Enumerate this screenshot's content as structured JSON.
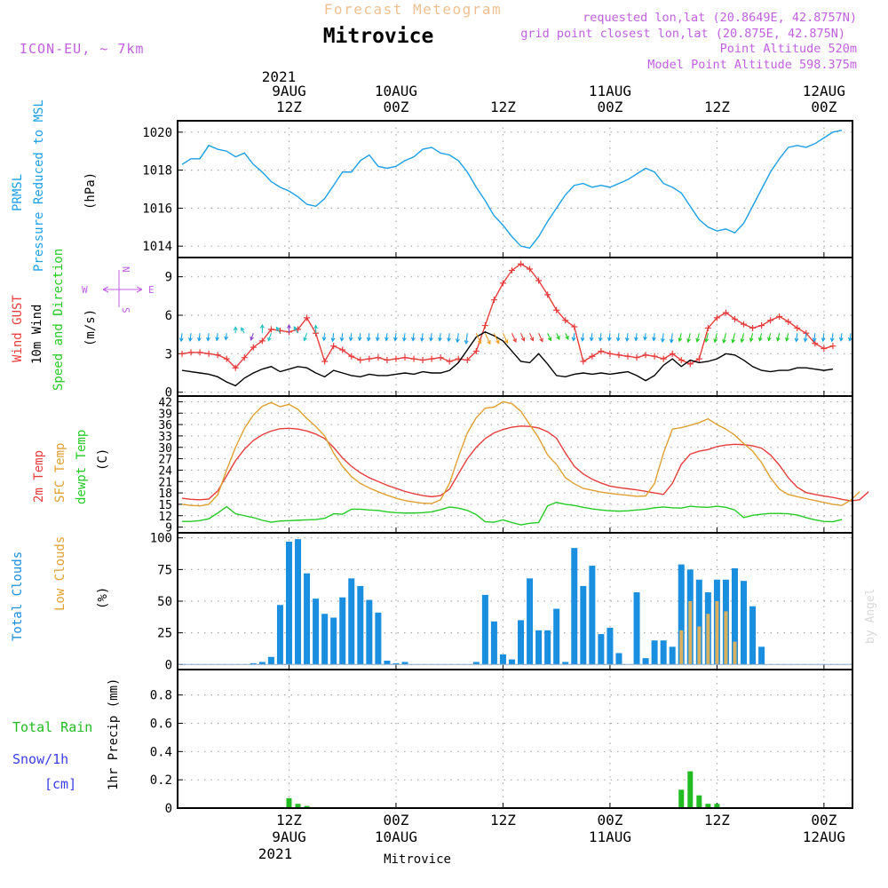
{
  "header": {
    "subtitle": "Forecast Meteogram",
    "title": "Mitrovice",
    "model": "ICON-EU, ~ 7km",
    "requested": "requested lon,lat (20.8649E, 42.8757N)",
    "grid": "grid point closest lon,lat (20.875E, 42.875N)",
    "point_alt": "Point Altitude 520m",
    "model_alt": "Model Point Altitude 598.375m"
  },
  "top_axis": {
    "year": "2021",
    "ticks": [
      {
        "i": 12,
        "l1": "9AUG",
        "l2": "12Z"
      },
      {
        "i": 24,
        "l1": "10AUG",
        "l2": "00Z"
      },
      {
        "i": 36,
        "l1": "",
        "l2": "12Z"
      },
      {
        "i": 48,
        "l1": "11AUG",
        "l2": "00Z"
      },
      {
        "i": 60,
        "l1": "",
        "l2": "12Z"
      },
      {
        "i": 72,
        "l1": "12AUG",
        "l2": "00Z"
      }
    ]
  },
  "bottom_axis": {
    "year": "2021",
    "station": "Mitrovice",
    "ticks": [
      {
        "i": 12,
        "l1": "12Z",
        "l2": "9AUG"
      },
      {
        "i": 24,
        "l1": "00Z",
        "l2": "10AUG"
      },
      {
        "i": 36,
        "l1": "12Z",
        "l2": ""
      },
      {
        "i": 48,
        "l1": "00Z",
        "l2": "11AUG"
      },
      {
        "i": 60,
        "l1": "12Z",
        "l2": ""
      },
      {
        "i": 72,
        "l1": "00Z",
        "l2": "12AUG"
      }
    ]
  },
  "labels": {
    "prmsl": "PRMSL",
    "pressure": "Pressure Reduced to MSL",
    "hpa": "(hPa)",
    "wind_gust": "Wind GUST",
    "wind10": "10m Wind",
    "speed_dir": "Speed and Direction",
    "ms": "(m/s)",
    "t2m": "2m Temp",
    "sfc": "SFC Temp",
    "dewpt": "dewpt Temp",
    "c": "(C)",
    "total_clouds": "Total Clouds",
    "low_clouds": "Low Clouds",
    "pct": "(%)",
    "total_rain": "Total Rain",
    "snow": "Snow/1h",
    "cm": "[cm]",
    "precip": "1hr Precip (mm)",
    "compass_n": "N",
    "compass_s": "S",
    "compass_w": "W",
    "compass_e": "E",
    "watermark": "by Angel"
  },
  "colors": {
    "pressure": "#1aa0e8",
    "gust": "#e83c3c",
    "wind": "#000000",
    "t2m": "#e83c3c",
    "sfc": "#e0a030",
    "dew": "#22cc22",
    "total_clouds": "#1a8fe0",
    "low_clouds": "#d8b060",
    "rain": "#22bb22",
    "magenta": "#c060e0",
    "title_orange": "#f0c090"
  },
  "chart_data": [
    {
      "type": "line",
      "title": "PRMSL Pressure Reduced to MSL",
      "ylabel": "(hPa)",
      "ylim": [
        1013.4,
        1020.6
      ],
      "yticks": [
        1014,
        1016,
        1018,
        1020
      ],
      "x_hours_from_start": "0..75 (hourly, 0 = 9AUG 00Z)",
      "series": [
        {
          "name": "PRMSL",
          "values": [
            1018.3,
            1018.6,
            1018.6,
            1019.3,
            1019.1,
            1019.0,
            1018.7,
            1018.9,
            1018.3,
            1017.9,
            1017.4,
            1017.1,
            1016.9,
            1016.6,
            1016.2,
            1016.1,
            1016.5,
            1017.2,
            1017.9,
            1017.9,
            1018.5,
            1018.8,
            1018.2,
            1018.1,
            1018.2,
            1018.5,
            1018.7,
            1019.1,
            1019.2,
            1018.9,
            1018.8,
            1018.5,
            1017.9,
            1017.1,
            1016.4,
            1015.6,
            1015.1,
            1014.5,
            1014.0,
            1013.9,
            1014.5,
            1015.3,
            1016.0,
            1016.7,
            1017.2,
            1017.3,
            1017.1,
            1017.2,
            1017.1,
            1017.3,
            1017.5,
            1017.8,
            1018.1,
            1017.9,
            1017.3,
            1017.1,
            1016.8,
            1016.1,
            1015.4,
            1015.0,
            1014.8,
            1014.9,
            1014.7,
            1015.2,
            1016.1,
            1017.0,
            1017.9,
            1018.6,
            1019.2,
            1019.3,
            1019.2,
            1019.4,
            1019.7,
            1020.0,
            1020.1
          ]
        }
      ]
    },
    {
      "type": "line",
      "title": "Wind GUST / 10m Wind Speed and Direction",
      "ylabel": "(m/s)",
      "ylim": [
        -0.3,
        10.5
      ],
      "yticks": [
        0,
        3,
        6,
        9
      ],
      "series": [
        {
          "name": "Wind GUST",
          "values": [
            3.0,
            3.1,
            3.1,
            3.0,
            2.9,
            2.6,
            1.9,
            2.7,
            3.5,
            4.0,
            4.9,
            4.8,
            4.7,
            4.9,
            5.8,
            4.6,
            2.4,
            3.6,
            3.3,
            2.8,
            2.5,
            2.6,
            2.7,
            2.5,
            2.6,
            2.7,
            2.6,
            2.5,
            2.6,
            2.7,
            2.4,
            2.6,
            2.5,
            3.2,
            5.2,
            7.2,
            8.5,
            9.5,
            10.0,
            9.6,
            8.7,
            7.6,
            6.4,
            5.6,
            5.1,
            2.4,
            2.8,
            3.2,
            3.0,
            2.9,
            2.8,
            2.7,
            2.9,
            2.8,
            2.6,
            3.0,
            2.5,
            2.2,
            2.6,
            5.0,
            5.8,
            6.2,
            5.7,
            5.3,
            5.0,
            5.2,
            5.6,
            5.9,
            5.5,
            5.0,
            4.6,
            3.8,
            3.4,
            3.6
          ]
        },
        {
          "name": "10m Wind",
          "values": [
            1.7,
            1.6,
            1.5,
            1.4,
            1.2,
            0.8,
            0.5,
            1.1,
            1.5,
            1.8,
            2.0,
            1.6,
            1.8,
            2.0,
            1.9,
            1.5,
            1.2,
            1.7,
            1.5,
            1.3,
            1.2,
            1.4,
            1.3,
            1.3,
            1.4,
            1.5,
            1.4,
            1.6,
            1.5,
            1.5,
            1.7,
            2.3,
            3.3,
            4.3,
            4.7,
            4.4,
            4.0,
            3.2,
            2.4,
            2.3,
            3.0,
            2.2,
            1.3,
            1.2,
            1.4,
            1.5,
            1.4,
            1.5,
            1.4,
            1.5,
            1.6,
            1.3,
            0.9,
            1.3,
            2.1,
            2.6,
            2.0,
            2.5,
            2.3,
            2.4,
            2.6,
            3.0,
            2.9,
            2.5,
            2.0,
            1.7,
            1.6,
            1.7,
            1.7,
            1.9,
            1.9,
            1.8,
            1.7,
            1.8
          ]
        }
      ],
      "direction_arrows": "mostly northerly (pointing down) with north-easterly/southerly variations"
    },
    {
      "type": "line",
      "title": "2m Temp / SFC Temp / dewpt Temp",
      "ylabel": "(C)",
      "ylim": [
        7.5,
        43.5
      ],
      "yticks": [
        9,
        12,
        15,
        18,
        21,
        24,
        27,
        30,
        33,
        36,
        39,
        42
      ],
      "series": [
        {
          "name": "2m Temp",
          "values": [
            16.6,
            16.3,
            16.2,
            16.4,
            18.5,
            22.5,
            26.5,
            29.5,
            31.8,
            33.3,
            34.3,
            34.9,
            35.0,
            34.8,
            34.3,
            33.5,
            32.3,
            30.0,
            27.2,
            25.0,
            23.3,
            22.0,
            21.0,
            20.0,
            19.2,
            18.4,
            17.8,
            17.3,
            17.0,
            17.3,
            19.0,
            23.0,
            27.0,
            30.0,
            32.3,
            33.8,
            34.7,
            35.3,
            35.6,
            35.5,
            35.1,
            34.1,
            32.4,
            28.5,
            25.0,
            23.0,
            21.6,
            20.6,
            19.8,
            19.4,
            19.1,
            18.8,
            18.4,
            18.0,
            17.6,
            20.5,
            25.5,
            28.2,
            29.0,
            29.4,
            30.2,
            30.6,
            30.8,
            30.7,
            30.4,
            29.8,
            28.0,
            25.3,
            22.0,
            19.5,
            18.1,
            17.6,
            17.2,
            16.8,
            16.3,
            15.9,
            16.2,
            18.3
          ]
        },
        {
          "name": "SFC Temp",
          "values": [
            15.0,
            14.7,
            14.6,
            15.0,
            17.5,
            24.0,
            30.0,
            35.0,
            38.5,
            40.8,
            41.8,
            40.7,
            41.3,
            40.0,
            37.6,
            35.5,
            33.0,
            28.5,
            25.0,
            22.3,
            20.5,
            19.3,
            18.3,
            17.4,
            16.6,
            16.0,
            15.6,
            15.3,
            15.2,
            16.2,
            20.5,
            27.5,
            33.8,
            37.8,
            40.3,
            40.6,
            42.0,
            41.5,
            39.5,
            36.0,
            32.5,
            28.0,
            25.5,
            22.0,
            20.4,
            19.2,
            18.7,
            18.2,
            17.9,
            17.6,
            17.4,
            17.1,
            17.2,
            20.5,
            28.5,
            34.8,
            35.2,
            35.8,
            36.5,
            37.5,
            36.0,
            34.8,
            33.2,
            31.0,
            29.0,
            26.0,
            22.0,
            19.0,
            17.6,
            17.0,
            16.5,
            16.0,
            15.5,
            15.0,
            14.7,
            16.1,
            18.3
          ]
        },
        {
          "name": "dewpt Temp",
          "values": [
            10.5,
            10.5,
            10.7,
            11.2,
            12.7,
            14.4,
            12.5,
            12.0,
            11.5,
            10.8,
            10.3,
            10.6,
            10.7,
            10.8,
            10.9,
            11.0,
            11.3,
            12.5,
            12.4,
            13.7,
            13.7,
            13.5,
            13.4,
            13.0,
            12.8,
            12.7,
            12.7,
            12.8,
            13.0,
            13.6,
            14.3,
            14.0,
            13.4,
            12.3,
            10.4,
            10.3,
            10.9,
            10.2,
            9.6,
            10.0,
            10.2,
            14.6,
            15.5,
            15.0,
            14.7,
            14.2,
            13.8,
            13.5,
            13.3,
            13.2,
            13.3,
            13.5,
            13.7,
            14.1,
            14.3,
            14.1,
            14.0,
            14.5,
            14.3,
            14.2,
            14.5,
            14.2,
            13.5,
            11.5,
            12.1,
            12.4,
            12.6,
            12.6,
            12.5,
            12.2,
            11.5,
            10.9,
            10.5,
            10.4,
            11.0
          ]
        }
      ]
    },
    {
      "type": "bar",
      "title": "Total Clouds / Low Clouds",
      "ylabel": "(%)",
      "ylim": [
        -4,
        104
      ],
      "yticks": [
        0,
        25,
        50,
        75,
        100
      ],
      "series": [
        {
          "name": "Total Clouds",
          "values": [
            0,
            0,
            0,
            0,
            0,
            0,
            0,
            0,
            1,
            2,
            6,
            47,
            97,
            99,
            72,
            52,
            40,
            37,
            53,
            68,
            62,
            51,
            41,
            3,
            1,
            2,
            0,
            0,
            0,
            0,
            0,
            0,
            0,
            2,
            55,
            34,
            8,
            4,
            35,
            68,
            27,
            27,
            44,
            2,
            92,
            62,
            78,
            24,
            29,
            9,
            0,
            57,
            5,
            19,
            19,
            14,
            79,
            75,
            67,
            57,
            67,
            67,
            76,
            66,
            46,
            14,
            0,
            0,
            0,
            0,
            0,
            0,
            0,
            0,
            0,
            0
          ]
        },
        {
          "name": "Low Clouds",
          "values": [
            0,
            0,
            0,
            0,
            0,
            0,
            0,
            0,
            0,
            0,
            0,
            0,
            0,
            0,
            0,
            0,
            0,
            0,
            0,
            0,
            0,
            0,
            0,
            0,
            0,
            0,
            0,
            0,
            0,
            0,
            0,
            0,
            0,
            0,
            0,
            0,
            0,
            0,
            0,
            0,
            0,
            0,
            0,
            0,
            0,
            0,
            0,
            0,
            0,
            0,
            0,
            0,
            0,
            0,
            0,
            0,
            27,
            50,
            30,
            40,
            50,
            42,
            18,
            0,
            0,
            0,
            0,
            0,
            0,
            0,
            0,
            0,
            0,
            0,
            0,
            0
          ]
        }
      ]
    },
    {
      "type": "bar",
      "title": "Total Rain / Snow 1hr Precip",
      "ylabel": "1hr Precip (mm)",
      "ylim": [
        0,
        0.98
      ],
      "yticks": [
        0,
        0.2,
        0.4,
        0.6,
        0.8
      ],
      "series": [
        {
          "name": "Total Rain",
          "values": [
            0,
            0,
            0,
            0,
            0,
            0,
            0,
            0,
            0,
            0,
            0,
            0,
            0.07,
            0.03,
            0.015,
            0,
            0,
            0,
            0,
            0,
            0,
            0,
            0,
            0,
            0,
            0,
            0,
            0,
            0,
            0,
            0,
            0,
            0,
            0,
            0,
            0,
            0,
            0,
            0,
            0,
            0,
            0,
            0,
            0,
            0,
            0,
            0,
            0,
            0,
            0,
            0,
            0,
            0,
            0,
            0,
            0,
            0.13,
            0.26,
            0.09,
            0.03,
            0.03,
            0,
            0,
            0,
            0,
            0,
            0,
            0,
            0,
            0,
            0,
            0,
            0,
            0,
            0,
            0
          ]
        }
      ]
    }
  ]
}
